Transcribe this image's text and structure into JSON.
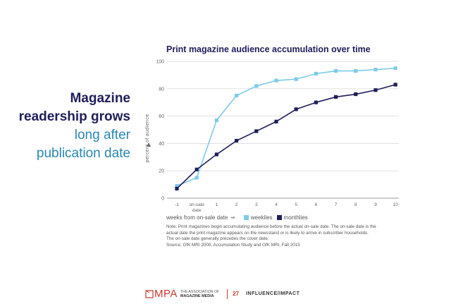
{
  "headline": {
    "line1": "Magazine",
    "line2": "readership grows",
    "line3": "long after",
    "line4": "publication date"
  },
  "chart_data": {
    "type": "line",
    "title": "Print magazine audience accumulation over time",
    "xlabel": "weeks from on-sale date",
    "ylabel": "percent of audience",
    "categories": [
      "-1",
      "on-sale date",
      "1",
      "2",
      "3",
      "4",
      "5",
      "6",
      "7",
      "8",
      "9",
      "10"
    ],
    "ylim": [
      0,
      100
    ],
    "yticks": [
      0,
      20,
      40,
      60,
      80,
      100
    ],
    "grid": true,
    "legend": "bottom",
    "series": [
      {
        "name": "weeklies",
        "color": "#7dcbe9",
        "values": [
          9,
          15,
          57,
          75,
          82,
          86,
          87,
          91,
          93,
          93,
          94,
          95
        ]
      },
      {
        "name": "monthlies",
        "color": "#1f1e5a",
        "values": [
          7,
          21,
          32,
          42,
          49,
          56,
          65,
          70,
          74,
          76,
          79,
          83
        ]
      }
    ]
  },
  "legend_arrow": "➡",
  "note": {
    "line1": "Note: Print magazines begin accumulating audience before the actual on-sale date. The on-sale date is the",
    "line2": "actual date the print magazine appears on the newsstand or is likely to arrive in subscriber households.",
    "line3": "The on-sale date generally precedes the cover date.",
    "line4": "Source; GfK MRI 2000, Accumulation Study and GfK MRI, Fall 2015"
  },
  "footer": {
    "logo_text": "MPA",
    "assoc_line1": "THE ASSOCIATION OF",
    "assoc_line2": "MAGAZINE MEDIA",
    "page_number": "27",
    "section": "INFLUENCE/IMPACT",
    "accent_color": "#c4392f"
  }
}
